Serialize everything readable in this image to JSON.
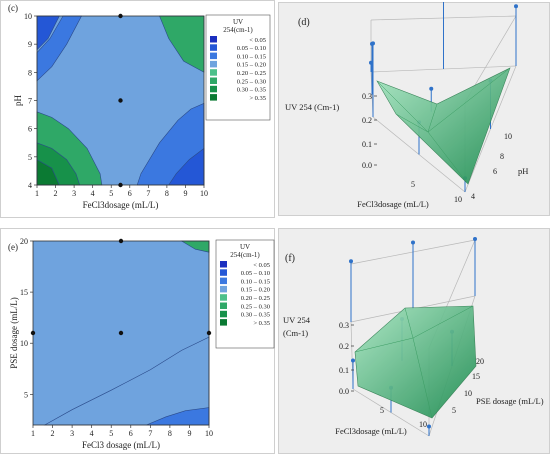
{
  "colors": {
    "c1": "#1b2fbf",
    "c2": "#2457d6",
    "c3": "#3b78e0",
    "c4": "#6fa3de",
    "c5": "#4cc08a",
    "c6": "#2fa867",
    "c7": "#17914a",
    "c8": "#0b7a33",
    "panel_bg": "#eeeeee",
    "surf_dark": "#1a8a4e",
    "surf_light": "#a8e6c2",
    "stem": "#2f72c9"
  },
  "chart_data": [
    {
      "type": "contour",
      "panel_label": "(c)",
      "xlabel": "FeCl3dosage (mL/L)",
      "ylabel": "pH",
      "x_ticks": [
        1,
        2,
        3,
        4,
        5,
        6,
        7,
        8,
        9,
        10
      ],
      "y_ticks": [
        4,
        5,
        6,
        7,
        8,
        9,
        10
      ],
      "xlim": [
        1,
        10
      ],
      "ylim": [
        4,
        10
      ],
      "design_points": [
        [
          5.5,
          7
        ],
        [
          5.5,
          10
        ],
        [
          5.5,
          4
        ]
      ],
      "legend": {
        "title": "UV 254(cm-1)",
        "bins": [
          "< 0.05",
          "0.05 – 0.10",
          "0.10 – 0.15",
          "0.15 – 0.20",
          "0.20 – 0.25",
          "0.25 – 0.30",
          "0.30 – 0.35",
          "> 0.35"
        ]
      },
      "contours": [
        {
          "bin": 1,
          "points": [
            [
              1,
              10
            ],
            [
              2.2,
              10
            ],
            [
              1.6,
              9.2
            ],
            [
              1,
              8.8
            ]
          ]
        },
        {
          "bin": 2,
          "points": [
            [
              1,
              8.7
            ],
            [
              1.7,
              9.2
            ],
            [
              2.4,
              10
            ],
            [
              3.4,
              10
            ],
            [
              2.6,
              9.0
            ],
            [
              1.8,
              8.2
            ],
            [
              1,
              7.7
            ]
          ]
        },
        {
          "bin": 2,
          "points": [
            [
              10,
              4
            ],
            [
              10,
              6.9
            ],
            [
              9.3,
              6.7
            ],
            [
              8.6,
              6.3
            ],
            [
              7.6,
              5.5
            ],
            [
              6.6,
              4.4
            ],
            [
              6.4,
              4
            ]
          ]
        },
        {
          "bin": 1,
          "points": [
            [
              10,
              4
            ],
            [
              10,
              5.3
            ],
            [
              9.2,
              4.9
            ],
            [
              8.5,
              4.4
            ],
            [
              8.1,
              4
            ]
          ]
        },
        {
          "bin": 5,
          "points": [
            [
              7.6,
              10
            ],
            [
              8.1,
              9.2
            ],
            [
              8.9,
              8.4
            ],
            [
              10,
              8.0
            ],
            [
              10,
              10
            ]
          ]
        },
        {
          "bin": 5,
          "points": [
            [
              1,
              4
            ],
            [
              1,
              6.6
            ],
            [
              1.8,
              6.4
            ],
            [
              2.7,
              6.0
            ],
            [
              3.7,
              5.3
            ],
            [
              4.4,
              4.4
            ],
            [
              4.5,
              4
            ]
          ]
        },
        {
          "bin": 6,
          "points": [
            [
              1,
              4
            ],
            [
              1,
              5.5
            ],
            [
              1.8,
              5.3
            ],
            [
              2.6,
              4.9
            ],
            [
              3.1,
              4.4
            ],
            [
              3.3,
              4
            ]
          ]
        },
        {
          "bin": 7,
          "points": [
            [
              1,
              4
            ],
            [
              1,
              4.9
            ],
            [
              1.8,
              4.6
            ],
            [
              2.2,
              4
            ]
          ]
        }
      ]
    },
    {
      "type": "surface3d",
      "panel_label": "(d)",
      "zlabel": "UV 254 (Cm-1)",
      "xlabel": "FeCl3dosage (mL/L)",
      "ylabel": "pH",
      "z_ticks": [
        "0.0",
        "0.1",
        "0.2",
        "0.3"
      ],
      "x_ticks": [
        "5",
        "10"
      ],
      "y_ticks": [
        "4",
        "6",
        "8",
        "10"
      ],
      "points": [
        [
          1,
          4,
          0.32
        ],
        [
          5.5,
          7,
          0.1
        ],
        [
          10,
          10,
          0.26
        ],
        [
          10,
          4,
          0.06
        ],
        [
          1,
          10,
          0.04
        ],
        [
          5.5,
          10,
          0.3
        ],
        [
          5.5,
          4,
          0.14
        ],
        [
          1,
          7,
          0.22
        ],
        [
          10,
          7,
          0.21
        ]
      ]
    },
    {
      "type": "contour",
      "panel_label": "(e)",
      "xlabel": "FeCl3 dosage (mL/L)",
      "ylabel": "PSE dosage (mL/L)",
      "x_ticks": [
        1,
        2,
        3,
        4,
        5,
        6,
        7,
        8,
        9,
        10
      ],
      "y_ticks": [
        5,
        10,
        15,
        20
      ],
      "xlim": [
        1,
        10
      ],
      "ylim": [
        2,
        20
      ],
      "design_points": [
        [
          5.5,
          11
        ],
        [
          5.5,
          20
        ],
        [
          10,
          11
        ],
        [
          1,
          11
        ]
      ],
      "legend": {
        "title": "UV 254(cm-1)",
        "bins": [
          "< 0.05",
          "0.05 – 0.10",
          "0.10 – 0.15",
          "0.15 – 0.20",
          "0.20 – 0.25",
          "0.25 – 0.30",
          "0.30 – 0.35",
          "> 0.35"
        ]
      },
      "contours": [
        {
          "bin": 3,
          "points": [
            [
              1.6,
              2
            ],
            [
              3,
              3.5
            ],
            [
              5,
              5.4
            ],
            [
              7,
              7.4
            ],
            [
              8.6,
              9.3
            ],
            [
              10,
              10.6
            ],
            [
              10,
              2
            ]
          ]
        },
        {
          "bin": 2,
          "points": [
            [
              6.8,
              2
            ],
            [
              7.8,
              2.8
            ],
            [
              8.8,
              3.4
            ],
            [
              10,
              3.7
            ],
            [
              10,
              2
            ]
          ]
        },
        {
          "bin": 5,
          "points": [
            [
              8.6,
              20
            ],
            [
              9.3,
              19.2
            ],
            [
              10,
              18.9
            ],
            [
              10,
              20
            ]
          ]
        }
      ]
    },
    {
      "type": "surface3d",
      "panel_label": "(f)",
      "zlabel": "UV 254 (Cm-1)",
      "xlabel": "FeCl3dosage (mL/L)",
      "ylabel": "PSE dosage (mL/L)",
      "z_ticks": [
        "0.0",
        "0.1",
        "0.2",
        "0.3"
      ],
      "x_ticks": [
        "5",
        "10"
      ],
      "y_ticks": [
        "5",
        "10",
        "15",
        "20"
      ],
      "points": [
        [
          5.5,
          20,
          0.35
        ],
        [
          10,
          20,
          0.3
        ],
        [
          1,
          20,
          0.32
        ],
        [
          5.5,
          11,
          0.22
        ],
        [
          1,
          2,
          0.15
        ],
        [
          10,
          2,
          0.05
        ],
        [
          10,
          11,
          0.18
        ],
        [
          5.5,
          2,
          0.13
        ]
      ]
    }
  ]
}
